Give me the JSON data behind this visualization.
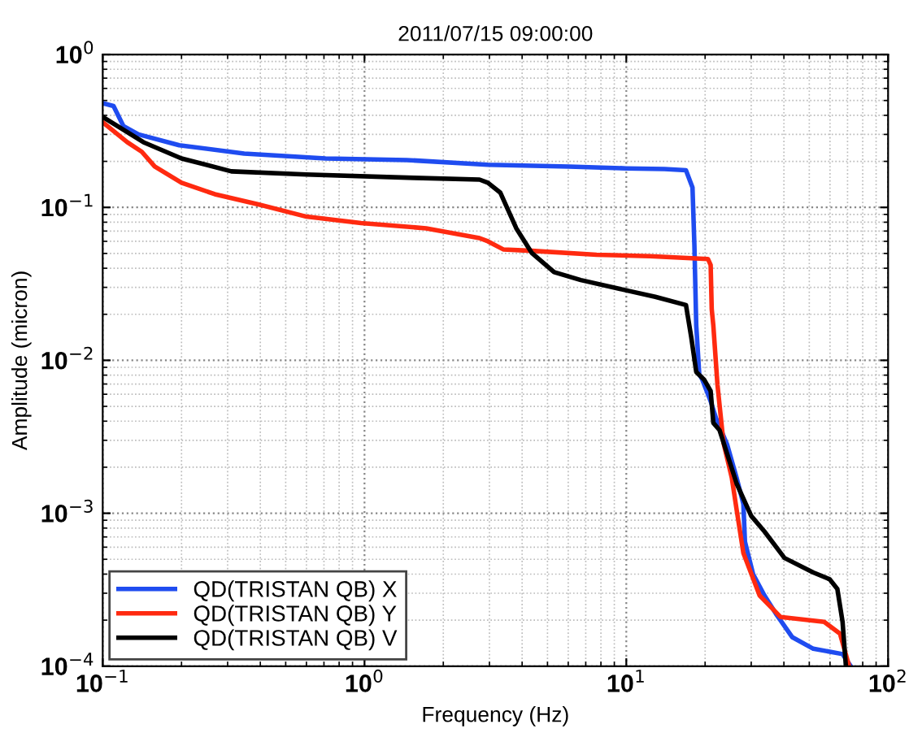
{
  "chart_data": {
    "type": "line",
    "title": "2011/07/15 09:00:00",
    "xlabel": "Frequency (Hz)",
    "ylabel": "Amplitude (micron)",
    "log": "xy",
    "xlim": [
      0.1,
      100
    ],
    "ylim": [
      0.0001,
      1
    ],
    "xticks": [
      {
        "value": 0.1,
        "label": "10$^{−1}$"
      },
      {
        "value": 1,
        "label": "10$^{0}$"
      },
      {
        "value": 10,
        "label": "10$^{1}$"
      },
      {
        "value": 100,
        "label": "10$^{2}$"
      }
    ],
    "yticks": [
      {
        "value": 0.0001,
        "label": "10$^{−4}$"
      },
      {
        "value": 0.001,
        "label": "10$^{−3}$"
      },
      {
        "value": 0.01,
        "label": "10$^{−2}$"
      },
      {
        "value": 0.1,
        "label": "10$^{−1}$"
      },
      {
        "value": 1,
        "label": "10$^{0}$"
      }
    ],
    "grid": true,
    "legend": "bottom left",
    "line_style": "solid",
    "marker": "none",
    "series": [
      {
        "name": "QD(TRISTAN QB) X",
        "color": "#1f4cf0",
        "x": [
          0.1,
          0.11,
          0.12,
          0.137,
          0.196,
          0.347,
          0.71,
          1.45,
          2.96,
          6.05,
          10,
          14,
          16.9,
          17.9,
          18.2,
          18.5,
          19.0,
          19.5,
          21,
          22,
          24.3,
          26.4,
          28,
          28.4,
          30.5,
          33.7,
          37.3,
          43,
          51.8,
          67,
          72
        ],
        "values": [
          0.48,
          0.46,
          0.34,
          0.3,
          0.255,
          0.225,
          0.209,
          0.204,
          0.19,
          0.185,
          0.18,
          0.178,
          0.175,
          0.135,
          0.057,
          0.0169,
          0.0081,
          0.0075,
          0.0054,
          0.0042,
          0.0028,
          0.0017,
          0.00115,
          0.00065,
          0.0004,
          0.00029,
          0.00022,
          0.000155,
          0.00013,
          0.00012,
          0.0001
        ]
      },
      {
        "name": "QD(TRISTAN QB) Y",
        "color": "#ff2a10",
        "x": [
          0.1,
          0.124,
          0.141,
          0.158,
          0.2,
          0.268,
          0.39,
          0.6,
          0.97,
          1.72,
          2.75,
          2.96,
          3.4,
          4.35,
          7.7,
          12.3,
          20.5,
          21,
          21.2,
          21.5,
          22.3,
          23.5,
          25.3,
          26.4,
          28,
          32.3,
          38.8,
          57,
          65.5,
          71
        ],
        "values": [
          0.36,
          0.267,
          0.231,
          0.185,
          0.145,
          0.122,
          0.105,
          0.087,
          0.079,
          0.073,
          0.063,
          0.06,
          0.053,
          0.052,
          0.049,
          0.048,
          0.046,
          0.042,
          0.0216,
          0.0169,
          0.0069,
          0.0029,
          0.0017,
          0.00105,
          0.00055,
          0.00029,
          0.00021,
          0.000195,
          0.000163,
          0.0001
        ]
      },
      {
        "name": "QD(TRISTAN QB) V",
        "color": "#000000",
        "x": [
          0.1,
          0.143,
          0.2,
          0.31,
          0.6,
          1.55,
          2.75,
          2.96,
          3.3,
          3.8,
          4.35,
          5.3,
          6.7,
          9.7,
          12.9,
          16.9,
          17.7,
          18.5,
          19.8,
          21,
          21.5,
          22.7,
          26.4,
          30,
          33.7,
          40.2,
          51.8,
          59.8,
          64,
          67,
          69
        ],
        "values": [
          0.39,
          0.267,
          0.209,
          0.172,
          0.164,
          0.156,
          0.152,
          0.145,
          0.125,
          0.073,
          0.0505,
          0.0377,
          0.0335,
          0.029,
          0.026,
          0.023,
          0.0142,
          0.0084,
          0.0075,
          0.0063,
          0.0039,
          0.0035,
          0.00156,
          0.00096,
          0.00076,
          0.00051,
          0.00041,
          0.00037,
          0.00032,
          0.000195,
          0.0001
        ]
      }
    ]
  }
}
